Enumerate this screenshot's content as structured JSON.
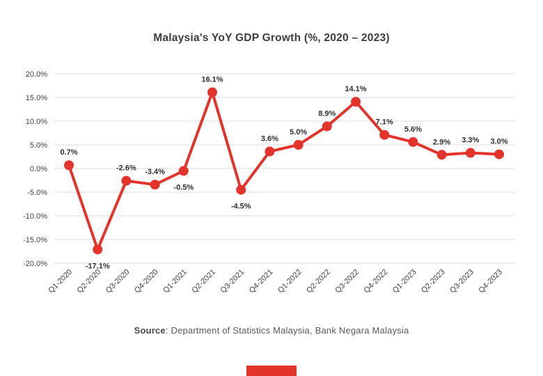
{
  "header": {
    "title": "Malaysia's YoY GDP Growth (%, 2020 – 2023)"
  },
  "footer": {
    "source_label": "Source",
    "source_rest": ": Department of Statistics Malaysia, Bank Negara Malaysia"
  },
  "colors": {
    "accent_red": "#e3342c",
    "grid": "#dcdcdc",
    "axis_text": "#3f3f3f",
    "data_label_text": "#2f2f2f",
    "title_text": "#3d3d3d",
    "source_text": "#595959",
    "background": "#ffffff"
  },
  "chart_data": {
    "type": "line",
    "title": "Malaysia's YoY GDP Growth (%, 2020 – 2023)",
    "categories": [
      "Q1-2020",
      "Q2-2020",
      "Q3-2020",
      "Q4-2020",
      "Q1-2021",
      "Q2-2021",
      "Q3-2021",
      "Q4-2021",
      "Q1-2022",
      "Q2-2022",
      "Q3-2022",
      "Q4-2022",
      "Q1-2023",
      "Q2-2023",
      "Q3-2023",
      "Q4-2023"
    ],
    "values": [
      0.7,
      -17.1,
      -2.6,
      -3.4,
      -0.5,
      16.1,
      -4.5,
      3.6,
      5.0,
      8.9,
      14.1,
      7.1,
      5.6,
      2.9,
      3.3,
      3.0
    ],
    "data_labels": [
      "0.7%",
      "-17.1%",
      "-2.6%",
      "-3.4%",
      "-0.5%",
      "16.1%",
      "-4.5%",
      "3.6%",
      "5.0%",
      "8.9%",
      "14.1%",
      "7.1%",
      "5.6%",
      "2.9%",
      "3.3%",
      "3.0%"
    ],
    "ylim": [
      -20,
      20
    ],
    "ytick_step": 5,
    "ytick_labels": [
      "20.0%",
      "15.0%",
      "10.0%",
      "5.0%",
      "0.0%",
      "-5.0%",
      "-10.0%",
      "-15.0%",
      "-20.0%"
    ],
    "grid": true,
    "legend": "none",
    "line_color": "#e3342c",
    "marker": "circle",
    "label_below_indices": [
      1,
      4,
      6
    ]
  }
}
